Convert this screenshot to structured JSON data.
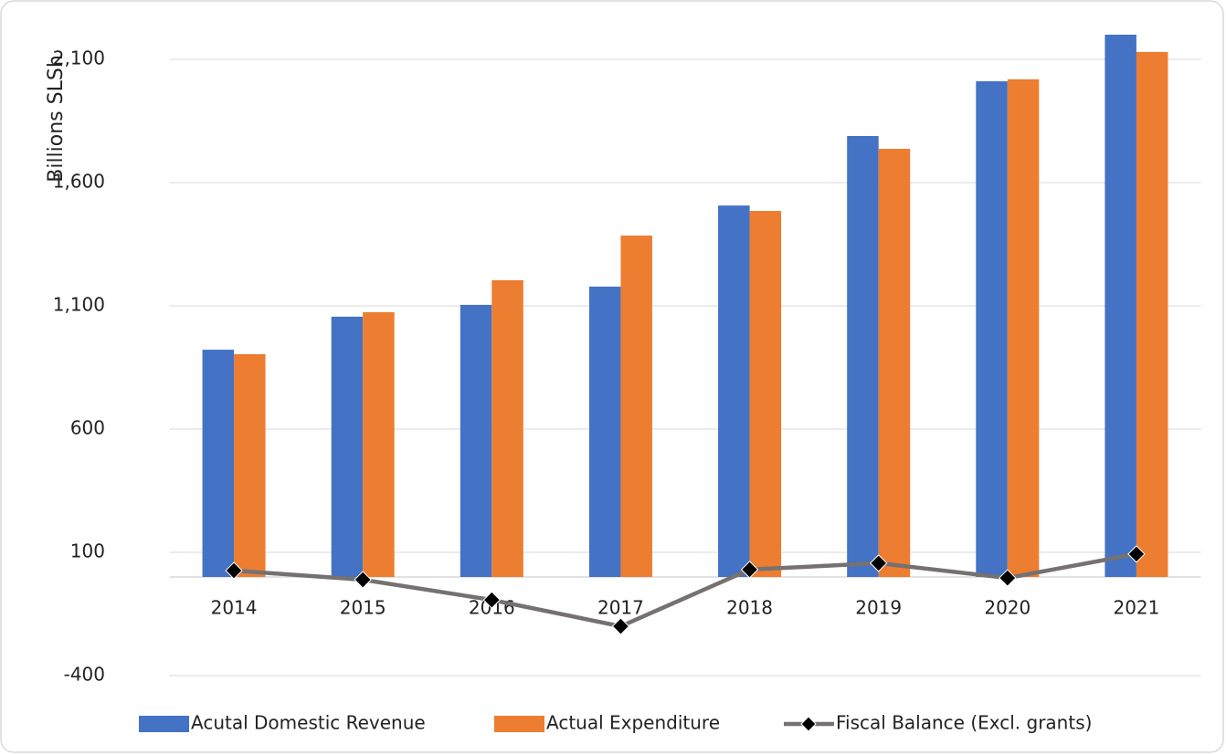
{
  "chart_data": {
    "type": "bar",
    "y_label": "Billions SLSh",
    "categories": [
      "2014",
      "2015",
      "2016",
      "2017",
      "2018",
      "2019",
      "2020",
      "2021"
    ],
    "series": [
      {
        "name": "Acutal Domestic Revenue",
        "color": "#4472c4",
        "type": "bar",
        "values": [
          922,
          1056,
          1104,
          1178,
          1507,
          1789,
          2011,
          2200
        ]
      },
      {
        "name": "Actual Expenditure",
        "color": "#ed7d31",
        "type": "bar",
        "values": [
          904,
          1074,
          1204,
          1385,
          1485,
          1737,
          2019,
          2130
        ]
      },
      {
        "name": "Fiscal Balance (Excl. grants)",
        "color": "#767171",
        "type": "line",
        "values": [
          26,
          -11,
          -93,
          -200,
          30,
          56,
          -4,
          93
        ]
      }
    ],
    "ylim": [
      -400,
      2250
    ],
    "yticks": [
      -400,
      100,
      {
        "value": 600,
        "label": "600"
      },
      {
        "value": 1100,
        "label": "1,100"
      },
      {
        "value": 1600,
        "label": "1,600"
      },
      {
        "value": 2100,
        "label": "2,100"
      }
    ],
    "grid": true,
    "legend": "bottom"
  }
}
